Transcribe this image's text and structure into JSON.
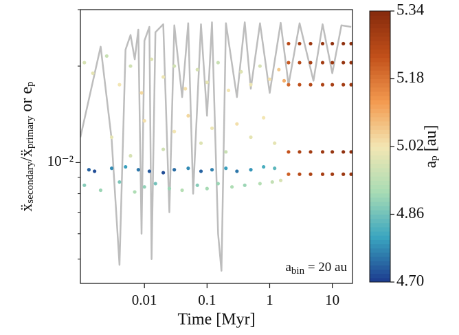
{
  "chart_data": {
    "type": "scatter",
    "xlabel": "Time [Myr]",
    "ylabel": [
      "ẍ",
      "secondary",
      "/ẍ",
      "primary",
      " or e",
      "p"
    ],
    "annotation": [
      "a",
      "bin",
      " = 20 au"
    ],
    "colorbar_label": [
      "a",
      "p",
      " [au]"
    ],
    "xlog": true,
    "ylog": true,
    "xlim": [
      0.00095,
      21
    ],
    "ylim": [
      0.0042,
      0.03
    ],
    "xticks": [
      0.01,
      0.1,
      1,
      10
    ],
    "yticks": [
      {
        "value": 0.01,
        "label": "10⁻²"
      }
    ],
    "yticks_minor": [
      0.005,
      0.006,
      0.007,
      0.008,
      0.009,
      0.02,
      0.03
    ],
    "clim": [
      4.7,
      5.34
    ],
    "cticks": [
      {
        "value": 5.34,
        "label": "5.34"
      },
      {
        "value": 5.18,
        "label": "5.18"
      },
      {
        "value": 5.02,
        "label": "5.02"
      },
      {
        "value": 4.86,
        "label": "4.86"
      },
      {
        "value": 4.7,
        "label": "4.70"
      }
    ],
    "colormap": [
      "#1c3a8e",
      "#3aa6c0",
      "#a9dcb4",
      "#f3e6b3",
      "#f39a4f",
      "#c2501a",
      "#852a0c"
    ],
    "line": {
      "color": "#bdbdbd",
      "x": [
        0.00095,
        0.002,
        0.003,
        0.004,
        0.005,
        0.006,
        0.007,
        0.008,
        0.009,
        0.01,
        0.012,
        0.013,
        0.015,
        0.02,
        0.025,
        0.03,
        0.04,
        0.05,
        0.06,
        0.08,
        0.1,
        0.12,
        0.15,
        0.17,
        0.2,
        0.3,
        0.4,
        0.5,
        0.7,
        1,
        1.5,
        2,
        3,
        5,
        7,
        10,
        14,
        20
      ],
      "values": [
        0.012,
        0.023,
        0.0118,
        0.0048,
        0.0225,
        0.025,
        0.021,
        0.026,
        0.006,
        0.024,
        0.0265,
        0.005,
        0.0255,
        0.027,
        0.007,
        0.0268,
        0.016,
        0.0272,
        0.008,
        0.027,
        0.014,
        0.0274,
        0.006,
        0.0046,
        0.0272,
        0.016,
        0.0274,
        0.017,
        0.0272,
        0.0165,
        0.0273,
        0.0175,
        0.0272,
        0.018,
        0.027,
        0.019,
        0.0268,
        0.0265
      ]
    },
    "points": {
      "x": [
        0.0013,
        0.0016,
        0.003,
        0.005,
        0.008,
        0.012,
        0.02,
        0.03,
        0.05,
        0.08,
        0.12,
        0.2,
        0.3,
        0.5,
        0.8,
        1.2,
        0.0011,
        0.002,
        0.004,
        0.007,
        0.01,
        0.015,
        0.025,
        0.04,
        0.07,
        0.1,
        0.15,
        0.25,
        0.4,
        0.7,
        1.1,
        1.5,
        0.003,
        0.006,
        0.01,
        0.02,
        0.03,
        0.05,
        0.08,
        0.12,
        0.2,
        0.3,
        0.5,
        0.8,
        1.2,
        0.0011,
        0.0015,
        0.0025,
        0.004,
        0.006,
        0.009,
        0.013,
        0.02,
        0.03,
        0.045,
        0.07,
        0.1,
        0.15,
        0.22,
        0.35,
        0.5,
        0.7,
        1.0,
        1.4,
        1.7,
        2,
        2,
        2,
        2,
        2,
        3,
        3,
        3,
        3,
        3,
        4.5,
        4.5,
        4.5,
        4.5,
        4.5,
        7,
        7,
        7,
        7,
        7,
        10,
        10,
        10,
        10,
        10,
        15,
        15,
        15,
        15,
        15,
        20,
        20,
        20,
        20,
        20
      ],
      "values": [
        0.0095,
        0.0094,
        0.0096,
        0.0097,
        0.0095,
        0.0094,
        0.0093,
        0.0095,
        0.0096,
        0.0094,
        0.0095,
        0.0096,
        0.0094,
        0.0095,
        0.0097,
        0.0096,
        0.0085,
        0.0082,
        0.0087,
        0.0081,
        0.0084,
        0.0086,
        0.0083,
        0.0082,
        0.0085,
        0.0083,
        0.0086,
        0.0084,
        0.0085,
        0.0086,
        0.0087,
        0.0088,
        0.012,
        0.0105,
        0.0135,
        0.011,
        0.0125,
        0.014,
        0.0115,
        0.0128,
        0.0108,
        0.0132,
        0.012,
        0.0138,
        0.0115,
        0.0205,
        0.019,
        0.0215,
        0.0175,
        0.02,
        0.0165,
        0.021,
        0.0185,
        0.02,
        0.017,
        0.0195,
        0.0178,
        0.0205,
        0.0168,
        0.0192,
        0.0175,
        0.02,
        0.0182,
        0.0195,
        0.018,
        0.0175,
        0.0205,
        0.0235,
        0.0092,
        0.0108,
        0.0175,
        0.0205,
        0.0235,
        0.0092,
        0.0108,
        0.0175,
        0.0205,
        0.0235,
        0.0092,
        0.0108,
        0.0175,
        0.0205,
        0.0235,
        0.0092,
        0.0108,
        0.0175,
        0.0205,
        0.0235,
        0.0092,
        0.0108,
        0.0175,
        0.0205,
        0.0235,
        0.0092,
        0.0108,
        0.0175,
        0.0205,
        0.0235,
        0.0092,
        0.0108
      ],
      "c": [
        4.74,
        4.72,
        4.78,
        4.8,
        4.76,
        4.73,
        4.72,
        4.75,
        4.78,
        4.74,
        4.77,
        4.8,
        4.76,
        4.79,
        4.82,
        4.84,
        4.88,
        4.9,
        4.87,
        4.92,
        4.89,
        4.86,
        4.9,
        4.93,
        4.88,
        4.91,
        4.9,
        4.92,
        4.9,
        4.93,
        4.95,
        4.98,
        5.0,
        4.98,
        5.03,
        4.97,
        5.02,
        5.04,
        4.99,
        5.01,
        4.96,
        5.03,
        5.0,
        5.02,
        5.0,
        4.98,
        5.0,
        4.96,
        5.02,
        4.97,
        5.04,
        4.99,
        5.01,
        4.97,
        5.03,
        4.98,
        5.0,
        4.96,
        5.02,
        4.99,
        5.01,
        4.98,
        5.03,
        5.06,
        5.1,
        5.2,
        5.22,
        5.25,
        5.21,
        5.23,
        5.24,
        5.26,
        5.28,
        5.25,
        5.27,
        5.26,
        5.28,
        5.3,
        5.27,
        5.29,
        5.27,
        5.29,
        5.31,
        5.28,
        5.3,
        5.28,
        5.3,
        5.32,
        5.29,
        5.31,
        5.29,
        5.31,
        5.32,
        5.3,
        5.32,
        5.3,
        5.32,
        5.33,
        5.31,
        5.33
      ]
    }
  }
}
